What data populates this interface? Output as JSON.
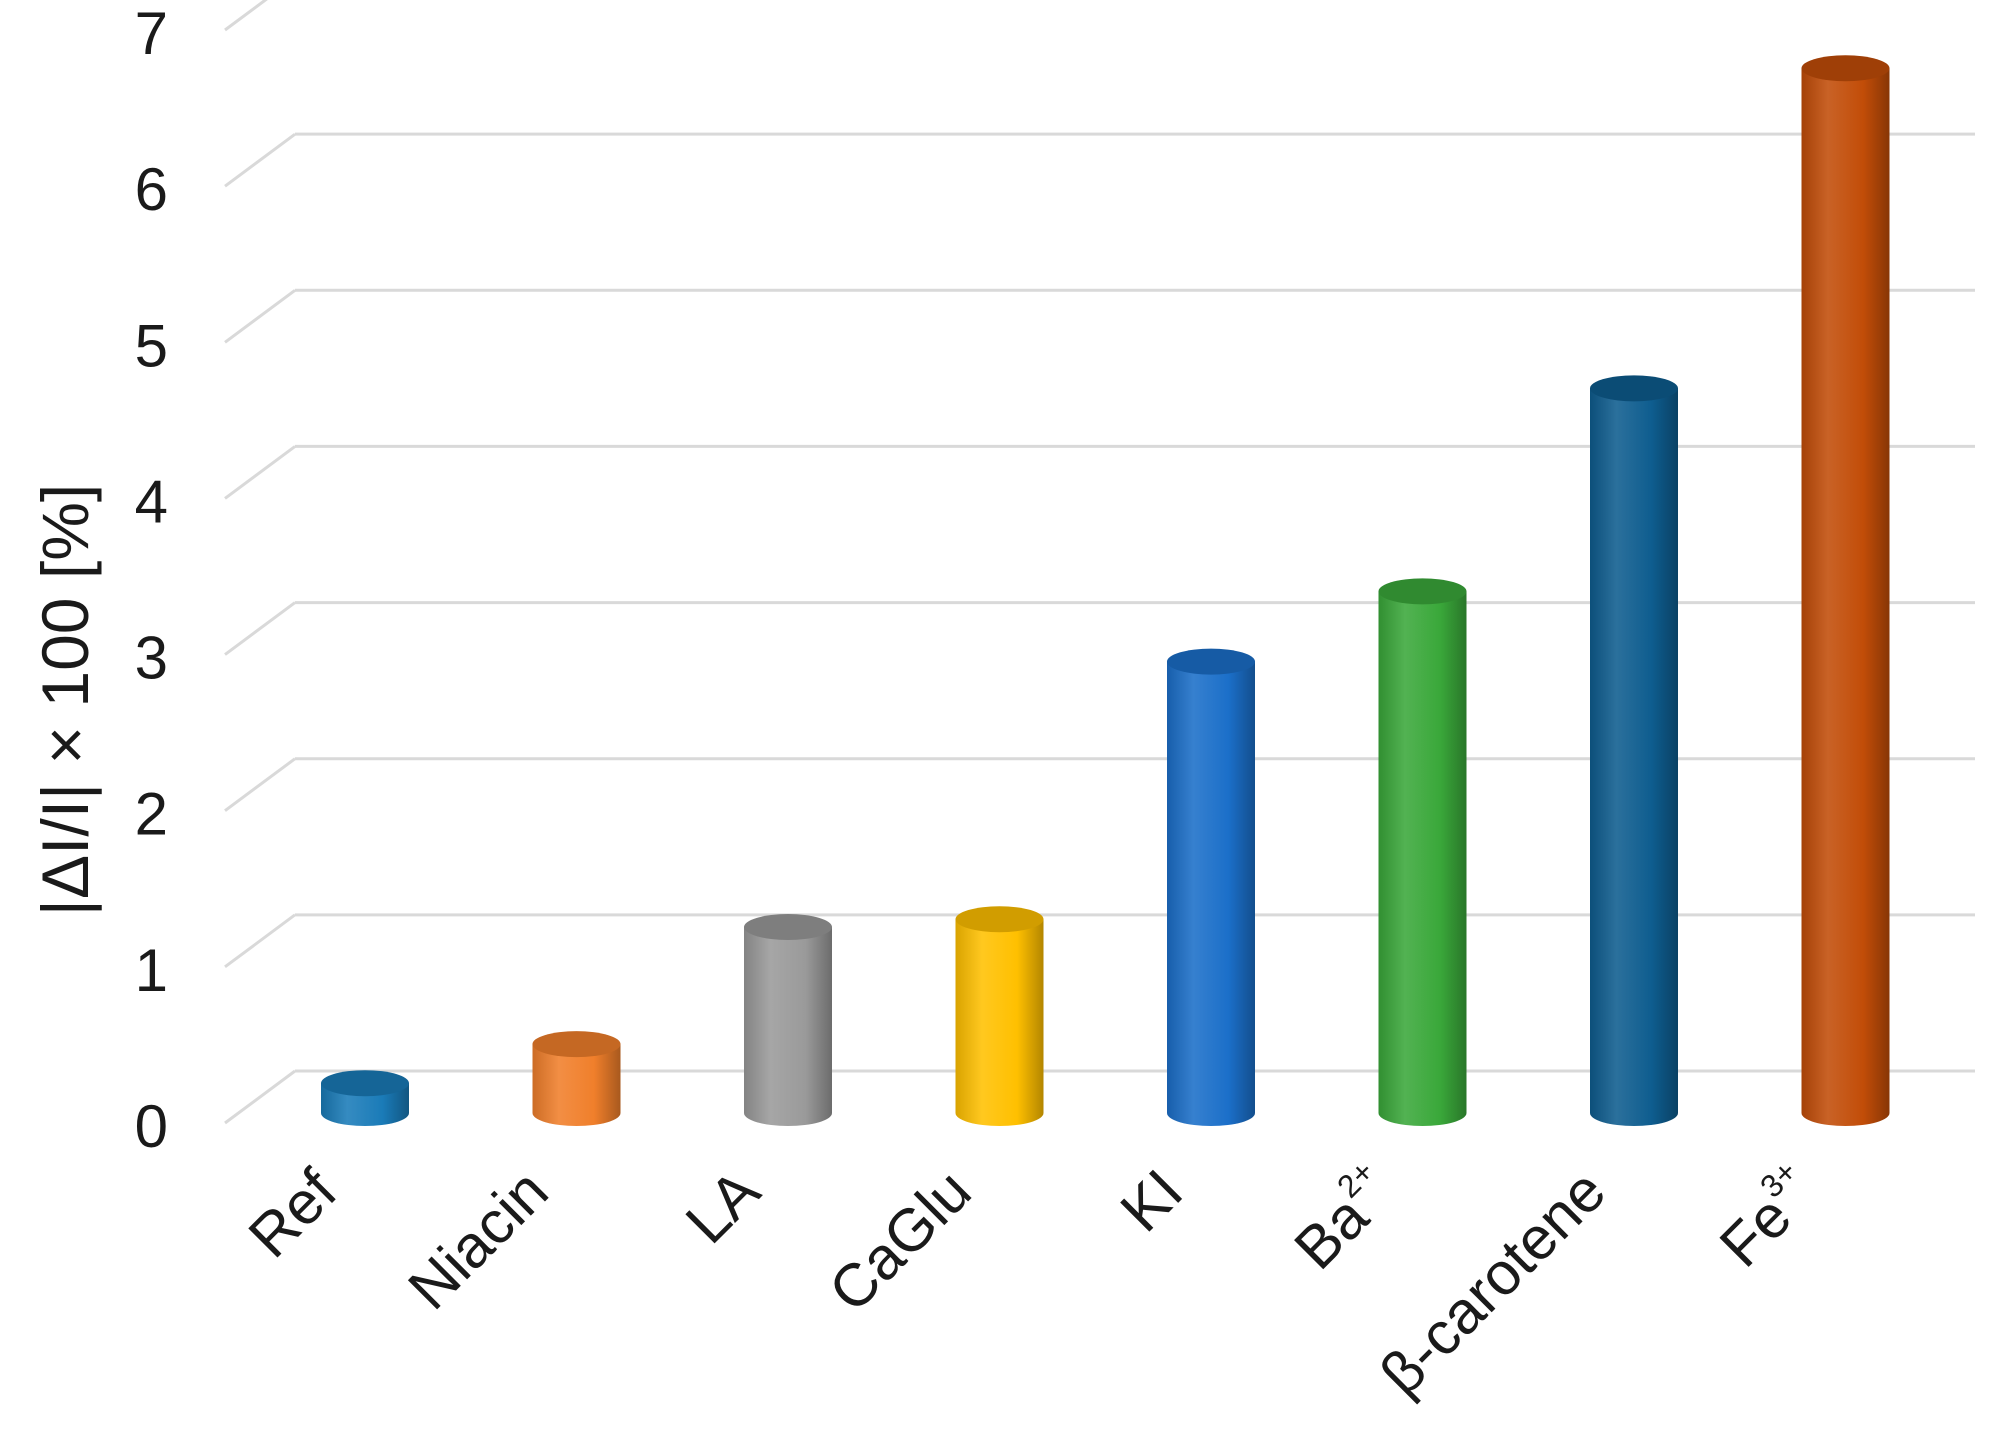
{
  "chart_data": {
    "type": "bar",
    "title": "",
    "ylabel": "|ΔI/I| × 100 [%]",
    "xlabel": "",
    "ylim": [
      0,
      7
    ],
    "yticks": [
      "0",
      "1",
      "2",
      "3",
      "4",
      "5",
      "6",
      "7"
    ],
    "grid": true,
    "categories": [
      {
        "base": "Ref",
        "sup": ""
      },
      {
        "base": "Niacin",
        "sup": ""
      },
      {
        "base": "LA",
        "sup": ""
      },
      {
        "base": "CaGlu",
        "sup": ""
      },
      {
        "base": "KI",
        "sup": ""
      },
      {
        "base": "Ba",
        "sup": "2+"
      },
      {
        "base": "β-carotene",
        "sup": ""
      },
      {
        "base": "Fe",
        "sup": "3+"
      }
    ],
    "values": [
      0.05,
      0.3,
      1.05,
      1.1,
      2.75,
      3.2,
      4.5,
      6.55
    ],
    "colors": [
      "#1a7bb8",
      "#f07f2b",
      "#9a9a9a",
      "#ffc000",
      "#1b6fc9",
      "#3aa83a",
      "#0e5d8f",
      "#c24d08"
    ]
  }
}
